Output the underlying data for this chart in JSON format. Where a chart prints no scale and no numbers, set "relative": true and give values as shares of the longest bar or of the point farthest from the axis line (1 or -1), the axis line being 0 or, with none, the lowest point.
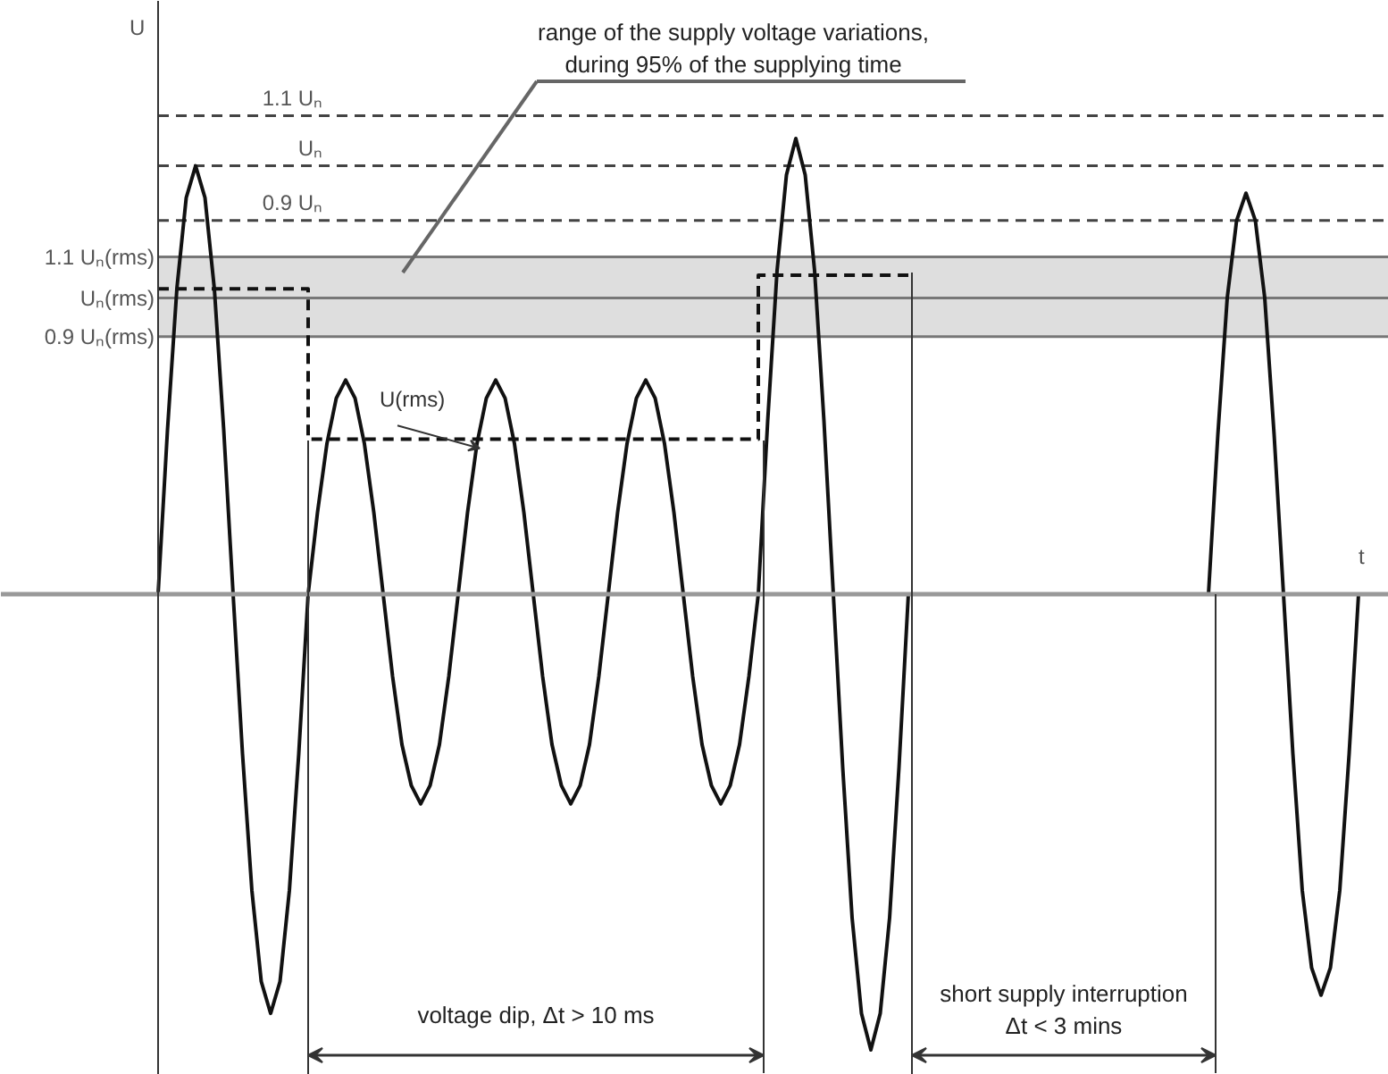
{
  "chart_data": {
    "type": "line",
    "relative": true,
    "xlabel": "t",
    "ylabel": "U",
    "grid": false,
    "categories": [
      null,
      null,
      null,
      null,
      null,
      null,
      null,
      null,
      null,
      null,
      null,
      null,
      null,
      null,
      null,
      null,
      null,
      null,
      null,
      null,
      null,
      null,
      null,
      null,
      null,
      null,
      null,
      null,
      null,
      null,
      null,
      null,
      null,
      null,
      null,
      null,
      null,
      null,
      null,
      null,
      null,
      null,
      null,
      null,
      null,
      null,
      null,
      null,
      null,
      null,
      null,
      null,
      null,
      null,
      null,
      null,
      null,
      null,
      null,
      null,
      null,
      null,
      null,
      null,
      null,
      null,
      null,
      null,
      null,
      null,
      null,
      null,
      null,
      null,
      null,
      null,
      null,
      null,
      null,
      null,
      null,
      null,
      null,
      null,
      null,
      null,
      null,
      null,
      null,
      null,
      null,
      null,
      null,
      null,
      null,
      null,
      null,
      null,
      null,
      null,
      null,
      null,
      null,
      null,
      null,
      null,
      null,
      null,
      null,
      null,
      null,
      null,
      null,
      null,
      null,
      null,
      null,
      null,
      null,
      null,
      null,
      null,
      null,
      null,
      null,
      null,
      null,
      null,
      null
    ],
    "series": [
      {
        "type": "line",
        "color": "#111111",
        "line_style": "solid",
        "values": [
          0,
          0.36,
          0.67,
          0.87,
          0.94,
          0.87,
          0.67,
          0.36,
          0,
          -0.35,
          -0.65,
          -0.85,
          -0.92,
          -0.85,
          -0.65,
          -0.35,
          0,
          0.18,
          0.33,
          0.43,
          0.47,
          0.43,
          0.33,
          0.18,
          0,
          -0.18,
          -0.33,
          -0.42,
          -0.46,
          -0.42,
          -0.33,
          -0.18,
          0,
          0.18,
          0.33,
          0.43,
          0.47,
          0.43,
          0.33,
          0.18,
          0,
          -0.18,
          -0.33,
          -0.42,
          -0.46,
          -0.42,
          -0.33,
          -0.18,
          0,
          0.18,
          0.33,
          0.43,
          0.47,
          0.43,
          0.33,
          0.18,
          0,
          -0.18,
          -0.33,
          -0.42,
          -0.46,
          -0.42,
          -0.33,
          -0.18,
          0,
          0.38,
          0.71,
          0.92,
          1,
          0.92,
          0.71,
          0.38,
          0,
          -0.38,
          -0.71,
          -0.92,
          -1,
          -0.92,
          -0.71,
          -0.38,
          0,
          0,
          0,
          0,
          0,
          0,
          0,
          0,
          0,
          0,
          0,
          0,
          0,
          0,
          0,
          0,
          0,
          0,
          0,
          0,
          0,
          0,
          0,
          0,
          0,
          0,
          0,
          0,
          0,
          0,
          0,
          0,
          0,
          0.35,
          0.65,
          0.82,
          0.88,
          0.82,
          0.65,
          0.35,
          0,
          -0.35,
          -0.65,
          -0.82,
          -0.88,
          -0.82,
          -0.65,
          -0.35,
          0
        ]
      },
      {
        "type": "step",
        "name": "U(rms)",
        "color": "#111111",
        "line_style": "dashed",
        "values": [
          0.67,
          0.67,
          0.67,
          0.67,
          0.67,
          0.67,
          0.67,
          0.67,
          0.67,
          0.67,
          0.67,
          0.67,
          0.67,
          0.67,
          0.67,
          0.67,
          0.34,
          0.34,
          0.34,
          0.34,
          0.34,
          0.34,
          0.34,
          0.34,
          0.34,
          0.34,
          0.34,
          0.34,
          0.34,
          0.34,
          0.34,
          0.34,
          0.34,
          0.34,
          0.34,
          0.34,
          0.34,
          0.34,
          0.34,
          0.34,
          0.34,
          0.34,
          0.34,
          0.34,
          0.34,
          0.34,
          0.34,
          0.34,
          0.34,
          0.34,
          0.34,
          0.34,
          0.34,
          0.34,
          0.34,
          0.34,
          0.34,
          0.34,
          0.34,
          0.34,
          0.34,
          0.34,
          0.34,
          0.34,
          0.7,
          0.7,
          0.7,
          0.7,
          0.7,
          0.7,
          0.7,
          0.7,
          0.7,
          0.7,
          0.7,
          0.7,
          0.7,
          0.7,
          0.7,
          0.7,
          0.7,
          null,
          null,
          null,
          null,
          null,
          null,
          null,
          null,
          null,
          null,
          null,
          null,
          null,
          null,
          null,
          null,
          null,
          null,
          null,
          null,
          null,
          null,
          null,
          null,
          null,
          null,
          null,
          null,
          null,
          null,
          null,
          null,
          null,
          null,
          null,
          null,
          null,
          null,
          null,
          null,
          null,
          null,
          null,
          null,
          null,
          null,
          null,
          null
        ]
      }
    ],
    "ref_lines": [
      {
        "axis": "y",
        "value": 1.05,
        "label": "1.1 Uₙ",
        "color": "#444444",
        "line_style": "dashed"
      },
      {
        "axis": "y",
        "value": 0.94,
        "label": "Uₙ",
        "color": "#444444",
        "line_style": "dashed"
      },
      {
        "axis": "y",
        "value": 0.82,
        "label": "0.9 Uₙ",
        "color": "#444444",
        "line_style": "dashed"
      },
      {
        "axis": "y",
        "value": 0.74,
        "label": "1.1 Uₙ(rms)",
        "color": "#777777",
        "line_style": "solid"
      },
      {
        "axis": "y",
        "value": 0.65,
        "label": "Uₙ(rms)",
        "color": "#777777",
        "line_style": "solid"
      },
      {
        "axis": "y",
        "value": 0.565,
        "label": "0.9 Uₙ(rms)",
        "color": "#777777",
        "line_style": "solid"
      }
    ],
    "bands": [
      {
        "axis": "y",
        "from": 0.565,
        "to": 0.74,
        "color": "#dedede"
      }
    ],
    "annotations": [
      "range of the supply voltage variations,\nduring 95% of the supplying time",
      "voltage dip, Δt > 10 ms",
      "short supply interruption\nΔt < 3 mins"
    ]
  }
}
